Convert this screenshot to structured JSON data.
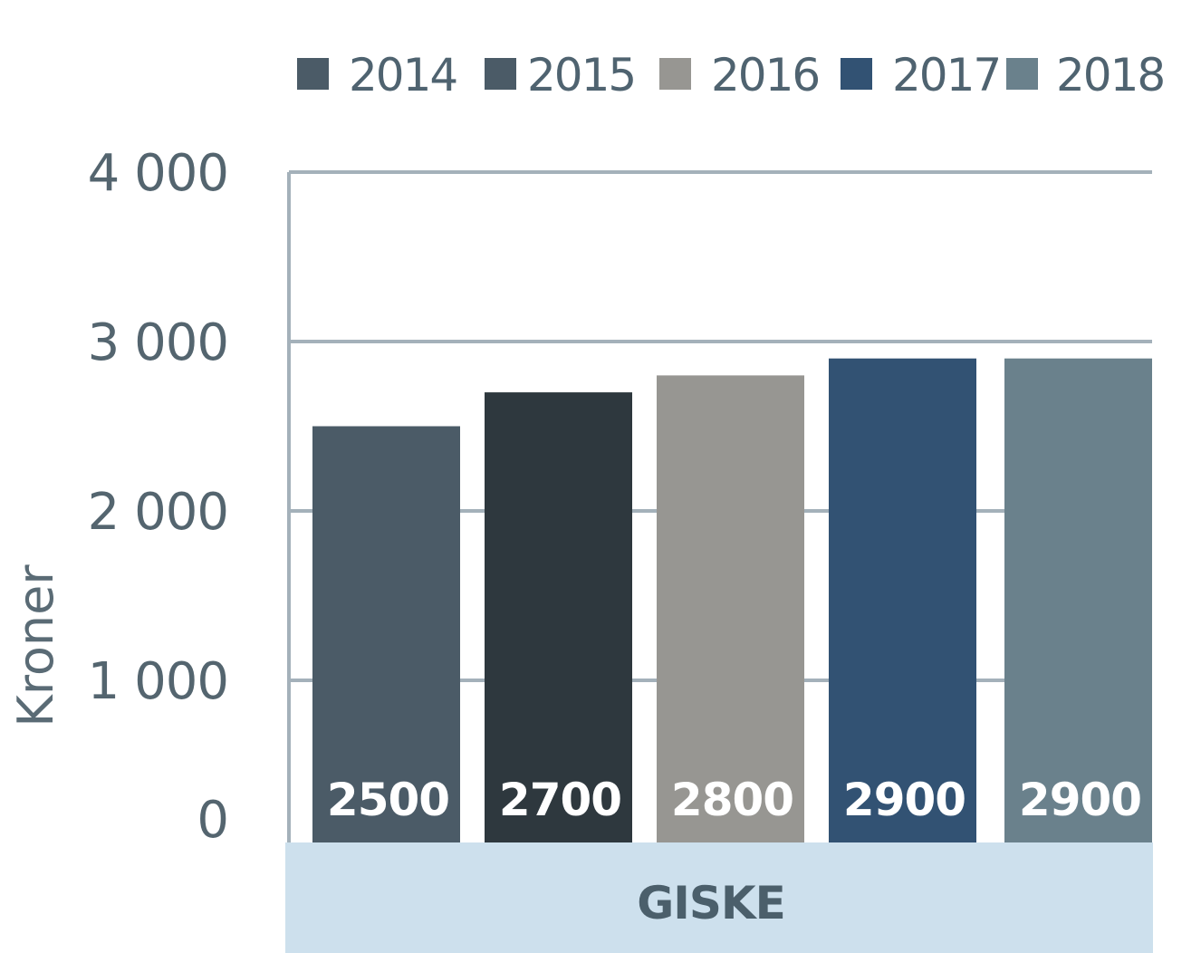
{
  "chart_data": {
    "type": "bar",
    "title": "",
    "xlabel": "",
    "ylabel": "Kroner",
    "ylim": [
      0,
      4000
    ],
    "yticks": [
      0,
      1000,
      2000,
      3000,
      4000
    ],
    "ytick_labels": [
      "0",
      "1 000",
      "2 000",
      "3 000",
      "4 000"
    ],
    "grid": true,
    "legend_position": "top",
    "categories": [
      "GISKE"
    ],
    "series": [
      {
        "name": "2014",
        "values": [
          2500
        ],
        "label": "2500",
        "color": "#4b5b67"
      },
      {
        "name": "2015",
        "values": [
          2700
        ],
        "label": "2700",
        "color": "#2e383e"
      },
      {
        "name": "2016",
        "values": [
          2800
        ],
        "label": "2800",
        "color": "#979692"
      },
      {
        "name": "2017",
        "values": [
          2900
        ],
        "label": "2900",
        "color": "#325273"
      },
      {
        "name": "2018",
        "values": [
          2900
        ],
        "label": "2900",
        "color": "#6a818c"
      }
    ],
    "colors": {
      "grid": "#a4b1ba",
      "category_band": "#cde0ed",
      "legend_swatch_2014": "#4b5b67",
      "legend_swatch_2015": "#4b5b67"
    }
  }
}
